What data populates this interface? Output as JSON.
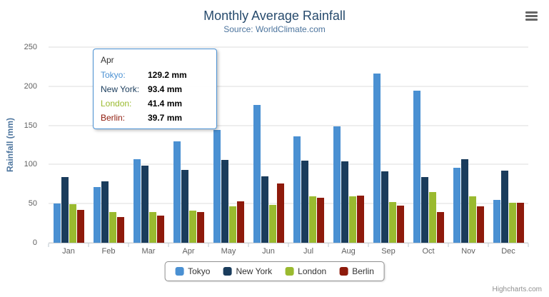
{
  "header": {
    "title": "Monthly Average Rainfall",
    "subtitle": "Source: WorldClimate.com"
  },
  "chart_data": {
    "type": "bar",
    "title": "Monthly Average Rainfall",
    "subtitle": "Source: WorldClimate.com",
    "xlabel": "",
    "ylabel": "Rainfall (mm)",
    "ylim": [
      0,
      250
    ],
    "ytick_step": 50,
    "grid": true,
    "legend_position": "bottom",
    "categories": [
      "Jan",
      "Feb",
      "Mar",
      "Apr",
      "May",
      "Jun",
      "Jul",
      "Aug",
      "Sep",
      "Oct",
      "Nov",
      "Dec"
    ],
    "series": [
      {
        "name": "Tokyo",
        "color": "#4a90d2",
        "values": [
          49.9,
          71.5,
          106.4,
          129.2,
          144.0,
          176.0,
          135.6,
          148.5,
          216.4,
          194.1,
          95.6,
          54.4
        ]
      },
      {
        "name": "New York",
        "color": "#1a3c5c",
        "values": [
          83.6,
          78.8,
          98.5,
          93.4,
          106.0,
          84.5,
          105.0,
          104.3,
          91.2,
          83.5,
          106.6,
          92.3
        ]
      },
      {
        "name": "London",
        "color": "#9aba2f",
        "values": [
          48.9,
          38.8,
          39.3,
          41.4,
          47.0,
          48.3,
          59.0,
          59.6,
          52.4,
          65.2,
          59.3,
          51.2
        ]
      },
      {
        "name": "Berlin",
        "color": "#8e1a0b",
        "values": [
          42.4,
          33.2,
          34.5,
          39.7,
          52.6,
          75.5,
          57.4,
          60.4,
          47.6,
          39.1,
          46.8,
          51.1
        ]
      }
    ]
  },
  "tooltip": {
    "header": "Apr",
    "rows": [
      {
        "label": "Tokyo:",
        "value": "129.2 mm"
      },
      {
        "label": "New York:",
        "value": "93.4 mm"
      },
      {
        "label": "London:",
        "value": "41.4 mm"
      },
      {
        "label": "Berlin:",
        "value": "39.7 mm"
      }
    ]
  },
  "legend": {
    "items": [
      "Tokyo",
      "New York",
      "London",
      "Berlin"
    ]
  },
  "credits": "Highcharts.com",
  "icons": {
    "menu": "hamburger-icon"
  }
}
